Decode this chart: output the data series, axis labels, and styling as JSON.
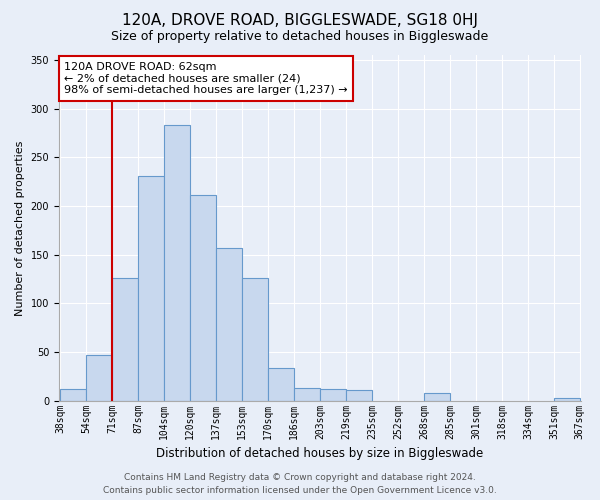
{
  "title": "120A, DROVE ROAD, BIGGLESWADE, SG18 0HJ",
  "subtitle": "Size of property relative to detached houses in Biggleswade",
  "xlabel": "Distribution of detached houses by size in Biggleswade",
  "ylabel": "Number of detached properties",
  "bin_edges": [
    38,
    54,
    71,
    87,
    104,
    120,
    137,
    153,
    170,
    186,
    203,
    219,
    235,
    252,
    268,
    285,
    301,
    318,
    334,
    351,
    367
  ],
  "bin_labels": [
    "38sqm",
    "54sqm",
    "71sqm",
    "87sqm",
    "104sqm",
    "120sqm",
    "137sqm",
    "153sqm",
    "170sqm",
    "186sqm",
    "203sqm",
    "219sqm",
    "235sqm",
    "252sqm",
    "268sqm",
    "285sqm",
    "301sqm",
    "318sqm",
    "334sqm",
    "351sqm",
    "367sqm"
  ],
  "bar_values": [
    12,
    47,
    126,
    231,
    283,
    211,
    157,
    126,
    34,
    13,
    12,
    11,
    0,
    0,
    8,
    0,
    0,
    0,
    0,
    3
  ],
  "bar_fill_color": "#c8d8ee",
  "bar_edge_color": "#6699cc",
  "highlight_line_color": "#cc0000",
  "highlight_bin_edge_index": 2,
  "annotation_line1": "120A DROVE ROAD: 62sqm",
  "annotation_line2": "← 2% of detached houses are smaller (24)",
  "annotation_line3": "98% of semi-detached houses are larger (1,237) →",
  "annotation_box_color": "white",
  "annotation_box_edge_color": "#cc0000",
  "ylim": [
    0,
    355
  ],
  "yticks": [
    0,
    50,
    100,
    150,
    200,
    250,
    300,
    350
  ],
  "footer_line1": "Contains HM Land Registry data © Crown copyright and database right 2024.",
  "footer_line2": "Contains public sector information licensed under the Open Government Licence v3.0.",
  "bg_color": "#e8eef8",
  "plot_bg_color": "#e8eef8",
  "grid_color": "white",
  "title_fontsize": 11,
  "subtitle_fontsize": 9,
  "xlabel_fontsize": 8.5,
  "ylabel_fontsize": 8,
  "tick_fontsize": 7,
  "annotation_fontsize": 8,
  "footer_fontsize": 6.5
}
